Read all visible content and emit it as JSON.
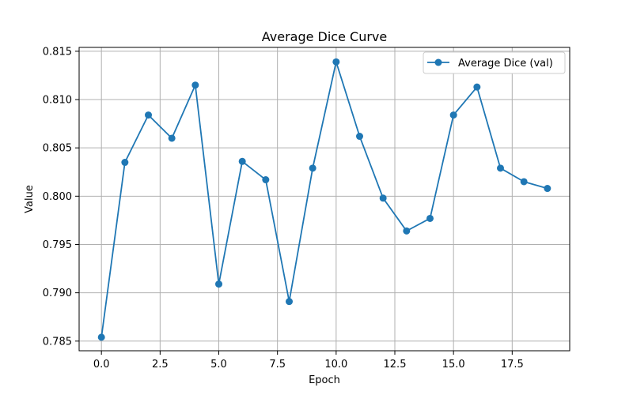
{
  "chart_data": {
    "type": "line",
    "title": "Average Dice Curve",
    "xlabel": "Epoch",
    "ylabel": "Value",
    "xlim": [
      -0.95,
      19.95
    ],
    "ylim": [
      0.784,
      0.8154
    ],
    "x_ticks": [
      0.0,
      2.5,
      5.0,
      7.5,
      10.0,
      12.5,
      15.0,
      17.5
    ],
    "x_tick_labels": [
      "0.0",
      "2.5",
      "5.0",
      "7.5",
      "10.0",
      "12.5",
      "15.0",
      "17.5"
    ],
    "y_ticks": [
      0.785,
      0.79,
      0.795,
      0.8,
      0.805,
      0.81,
      0.815
    ],
    "y_tick_labels": [
      "0.785",
      "0.790",
      "0.795",
      "0.800",
      "0.805",
      "0.810",
      "0.815"
    ],
    "grid": true,
    "legend_position": "top-right",
    "series": [
      {
        "name": "Average Dice (val)",
        "color": "#1f77b4",
        "marker": "circle",
        "x": [
          0,
          1,
          2,
          3,
          4,
          5,
          6,
          7,
          8,
          9,
          10,
          11,
          12,
          13,
          14,
          15,
          16,
          17,
          18,
          19
        ],
        "values": [
          0.7854,
          0.8035,
          0.8084,
          0.806,
          0.8115,
          0.7909,
          0.8036,
          0.8017,
          0.7891,
          0.8029,
          0.8139,
          0.8062,
          0.7998,
          0.7964,
          0.7977,
          0.8084,
          0.8113,
          0.8029,
          0.8015,
          0.8008
        ]
      }
    ]
  }
}
